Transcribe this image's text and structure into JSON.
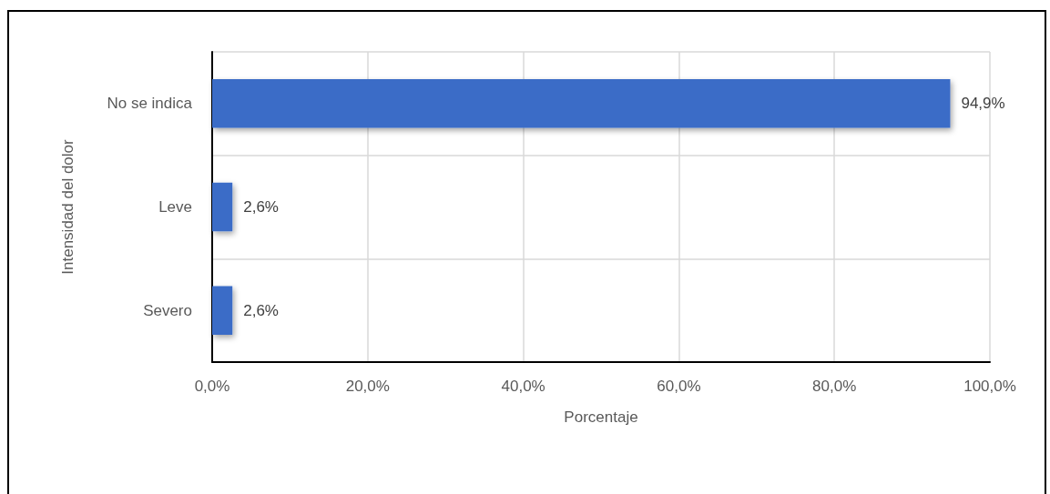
{
  "chart_data": {
    "type": "bar",
    "orientation": "horizontal",
    "ylabel": "Intensidad del dolor",
    "xlabel": "Porcentaje",
    "categories": [
      "No se indica",
      "Leve",
      "Severo"
    ],
    "values": [
      94.9,
      2.6,
      2.6
    ],
    "value_labels": [
      "94,9%",
      "2,6%",
      "2,6%"
    ],
    "color": "#3b6cc7",
    "xlim": [
      0,
      100
    ],
    "xticks": [
      {
        "value": 0,
        "label": "0,0%"
      },
      {
        "value": 20,
        "label": "20,0%"
      },
      {
        "value": 40,
        "label": "40,0%"
      },
      {
        "value": 60,
        "label": "60,0%"
      },
      {
        "value": 80,
        "label": "80,0%"
      },
      {
        "value": 100,
        "label": "100,0%"
      }
    ],
    "grid": true
  }
}
